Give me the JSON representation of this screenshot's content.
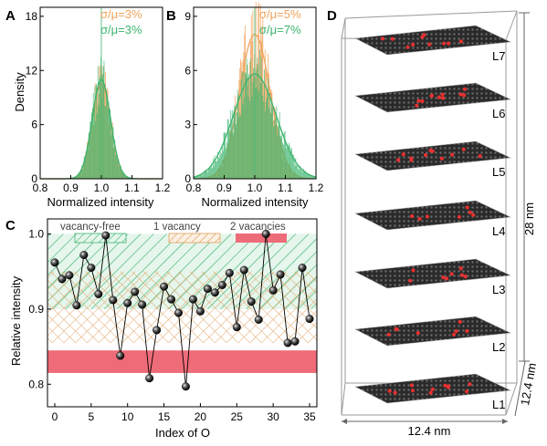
{
  "panels": {
    "A": {
      "label": "A",
      "xlabel": "Normalized intensity",
      "ylabel": "Density",
      "xlim": [
        0.8,
        1.2
      ],
      "ylim": [
        0,
        19
      ],
      "xticks": [
        "0.8",
        "0.9",
        "1.0",
        "1.1",
        "1.2"
      ],
      "xtick_values": [
        0.8,
        0.9,
        1.0,
        1.1,
        1.2
      ],
      "yticks": [
        "0",
        "6",
        "12",
        "18"
      ],
      "ytick_values": [
        0,
        6,
        12,
        18
      ],
      "legend": [
        {
          "text": "σ/μ=3%",
          "color": "#f0a35c"
        },
        {
          "text": "σ/μ=3%",
          "color": "#3cb46e"
        }
      ],
      "series": [
        {
          "color": "#f0a35c",
          "mean": 1.0,
          "sigma": 0.03,
          "peak": 10.5
        },
        {
          "color": "#3cb46e",
          "mean": 1.0,
          "sigma": 0.03,
          "peak": 11.0
        }
      ]
    },
    "B": {
      "label": "B",
      "xlabel": "Normalized intensity",
      "xlim": [
        0.8,
        1.2
      ],
      "ylim": [
        0,
        9.5
      ],
      "xticks": [
        "0.8",
        "0.9",
        "1.0",
        "1.1",
        "1.2"
      ],
      "xtick_values": [
        0.8,
        0.9,
        1.0,
        1.1,
        1.2
      ],
      "yticks": [
        "0",
        "3",
        "6",
        "9"
      ],
      "ytick_values": [
        0,
        3,
        6,
        9
      ],
      "legend": [
        {
          "text": "σ/μ=5%",
          "color": "#f0a35c"
        },
        {
          "text": "σ/μ=7%",
          "color": "#3cb46e"
        }
      ],
      "series": [
        {
          "color": "#f0a35c",
          "mean": 1.0,
          "sigma": 0.05,
          "peak": 8.0
        },
        {
          "color": "#3cb46e",
          "mean": 1.0,
          "sigma": 0.07,
          "peak": 5.8
        }
      ]
    },
    "C": {
      "label": "C",
      "xlabel": "Index of O",
      "ylabel": "Relative intensity",
      "xlim": [
        -1,
        36
      ],
      "ylim": [
        0.77,
        1.02
      ],
      "xticks": [
        "0",
        "5",
        "10",
        "15",
        "20",
        "25",
        "30",
        "35"
      ],
      "xtick_values": [
        0,
        5,
        10,
        15,
        20,
        25,
        30,
        35
      ],
      "yticks": [
        "0.8",
        "0.9",
        "1.0"
      ],
      "ytick_values": [
        0.8,
        0.9,
        1.0
      ],
      "bands": [
        {
          "name": "vacancy-free",
          "from": 0.9,
          "to": 1.0,
          "color": "#3cb46e",
          "pattern": "diag-right"
        },
        {
          "name": "1 vacancy",
          "from": 0.855,
          "to": 0.95,
          "color": "#e0a060",
          "pattern": "cross"
        },
        {
          "name": "2 vacancies",
          "from": 0.815,
          "to": 0.845,
          "color": "#ee6b78",
          "pattern": "solid"
        }
      ],
      "points": {
        "x": [
          0,
          1,
          2,
          3,
          4,
          5,
          6,
          7,
          8,
          9,
          10,
          11,
          12,
          13,
          14,
          15,
          16,
          17,
          18,
          19,
          20,
          21,
          22,
          23,
          24,
          25,
          26,
          27,
          28,
          29,
          30,
          31,
          32,
          33,
          34,
          35
        ],
        "y": [
          0.962,
          0.94,
          0.945,
          0.905,
          0.972,
          0.955,
          0.92,
          0.998,
          0.912,
          0.838,
          0.908,
          0.923,
          0.906,
          0.808,
          0.872,
          0.93,
          0.913,
          0.895,
          0.797,
          0.913,
          0.897,
          0.927,
          0.922,
          0.932,
          0.948,
          0.876,
          0.952,
          0.91,
          0.886,
          1.0,
          0.925,
          0.946,
          0.855,
          0.857,
          0.955,
          0.887
        ]
      }
    },
    "D": {
      "label": "D",
      "layers": [
        "L1",
        "L2",
        "L3",
        "L4",
        "L5",
        "L6",
        "L7"
      ],
      "dim_height": "28 nm",
      "dim_depth": "12.4 nm",
      "dim_width": "12.4 nm"
    }
  },
  "chart_data": [
    {
      "type": "bar",
      "title": "",
      "xlabel": "Normalized intensity",
      "ylabel": "Density",
      "xlim": [
        0.8,
        1.2
      ],
      "ylim": [
        0,
        19
      ],
      "series": [
        {
          "name": "σ/μ=3%",
          "color": "#f0a35c",
          "sigma_over_mu": 0.03
        },
        {
          "name": "σ/μ=3%",
          "color": "#3cb46e",
          "sigma_over_mu": 0.03
        }
      ]
    },
    {
      "type": "bar",
      "title": "",
      "xlabel": "Normalized intensity",
      "ylabel": "",
      "xlim": [
        0.8,
        1.2
      ],
      "ylim": [
        0,
        9.5
      ],
      "series": [
        {
          "name": "σ/μ=5%",
          "color": "#f0a35c",
          "sigma_over_mu": 0.05
        },
        {
          "name": "σ/μ=7%",
          "color": "#3cb46e",
          "sigma_over_mu": 0.07
        }
      ]
    },
    {
      "type": "scatter",
      "title": "",
      "xlabel": "Index of O",
      "ylabel": "Relative intensity",
      "xlim": [
        -1,
        36
      ],
      "ylim": [
        0.77,
        1.02
      ],
      "x": [
        0,
        1,
        2,
        3,
        4,
        5,
        6,
        7,
        8,
        9,
        10,
        11,
        12,
        13,
        14,
        15,
        16,
        17,
        18,
        19,
        20,
        21,
        22,
        23,
        24,
        25,
        26,
        27,
        28,
        29,
        30,
        31,
        32,
        33,
        34,
        35
      ],
      "y": [
        0.962,
        0.94,
        0.945,
        0.905,
        0.972,
        0.955,
        0.92,
        0.998,
        0.912,
        0.838,
        0.908,
        0.923,
        0.906,
        0.808,
        0.872,
        0.93,
        0.913,
        0.895,
        0.797,
        0.913,
        0.897,
        0.927,
        0.922,
        0.932,
        0.948,
        0.876,
        0.952,
        0.91,
        0.886,
        1.0,
        0.925,
        0.946,
        0.855,
        0.857,
        0.955,
        0.887
      ]
    }
  ]
}
